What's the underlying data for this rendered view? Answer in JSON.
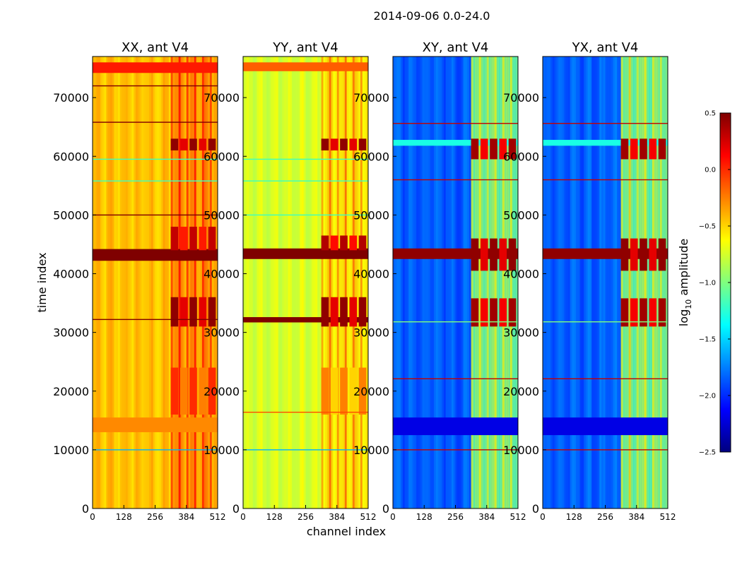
{
  "figure": {
    "suptitle": "2014-09-06 0.0-24.0",
    "xlabel": "channel index",
    "ylabel": "time index"
  },
  "colorbar": {
    "label_main": "log",
    "label_sub": "10",
    "label_rest": " amplitude",
    "range": [
      -2.5,
      0.5
    ],
    "ticks": [
      "0.5",
      "0.0",
      "−0.5",
      "−1.0",
      "−1.5",
      "−2.0",
      "−2.5"
    ],
    "tick_values": [
      0.5,
      0.0,
      -0.5,
      -1.0,
      -1.5,
      -2.0,
      -2.5
    ],
    "colormap": "jet",
    "colors": [
      "#00007f",
      "#0000ff",
      "#007fff",
      "#00ffff",
      "#7fff7f",
      "#ffff00",
      "#ff7f00",
      "#ff0000",
      "#7f0000"
    ]
  },
  "chart_data": [
    {
      "type": "heatmap",
      "title": "XX, ant V4",
      "xlabel": "channel index",
      "ylabel": "time index",
      "xlim": [
        0,
        512
      ],
      "ylim": [
        0,
        77000
      ],
      "x_ticks": [
        "0",
        "128",
        "256",
        "384",
        "512"
      ],
      "x_tick_values": [
        0,
        128,
        256,
        384,
        512
      ],
      "y_ticks": [
        "0",
        "10000",
        "20000",
        "30000",
        "40000",
        "50000",
        "60000",
        "70000"
      ],
      "y_tick_values": [
        0,
        10000,
        20000,
        30000,
        40000,
        50000,
        60000,
        70000
      ],
      "base_level": -0.45,
      "rfi_channels": [
        320,
        512
      ],
      "rfi_level": -0.3,
      "band_levels": [
        {
          "t0": 42200,
          "t1": 44200,
          "level": 0.5
        },
        {
          "t0": 74200,
          "t1": 76000,
          "level": 0.05
        },
        {
          "t0": 13000,
          "t1": 15500,
          "level": -0.28
        }
      ],
      "rfi_bursts": [
        {
          "t0": 31000,
          "t1": 36000,
          "level": 0.45
        },
        {
          "t0": 44000,
          "t1": 48000,
          "level": 0.3
        },
        {
          "t0": 61000,
          "t1": 63000,
          "level": 0.45
        },
        {
          "t0": 16000,
          "t1": 24000,
          "level": 0.0
        }
      ],
      "lines": [
        {
          "t": 72000,
          "level": 0.5
        },
        {
          "t": 65800,
          "level": 0.5
        },
        {
          "t": 50000,
          "level": 0.5
        },
        {
          "t": 32200,
          "level": 0.5
        },
        {
          "t": 10000,
          "level": -1.6
        },
        {
          "t": 59500,
          "level": -1.2
        },
        {
          "t": 55800,
          "level": -1.2
        }
      ]
    },
    {
      "type": "heatmap",
      "title": "YY, ant V4",
      "xlabel": "channel index",
      "ylabel": "time index",
      "xlim": [
        0,
        512
      ],
      "ylim": [
        0,
        77000
      ],
      "x_ticks": [
        "0",
        "128",
        "256",
        "384",
        "512"
      ],
      "x_tick_values": [
        0,
        128,
        256,
        384,
        512
      ],
      "y_ticks": [
        "0",
        "10000",
        "20000",
        "30000",
        "40000",
        "50000",
        "60000",
        "70000"
      ],
      "y_tick_values": [
        0,
        10000,
        20000,
        30000,
        40000,
        50000,
        60000,
        70000
      ],
      "base_level": -0.75,
      "rfi_channels": [
        320,
        512
      ],
      "rfi_level": -0.55,
      "band_levels": [
        {
          "t0": 42500,
          "t1": 44300,
          "level": 0.5
        },
        {
          "t0": 31700,
          "t1": 32600,
          "level": 0.5
        },
        {
          "t0": 74500,
          "t1": 76000,
          "level": -0.15
        }
      ],
      "rfi_bursts": [
        {
          "t0": 31000,
          "t1": 36000,
          "level": 0.45
        },
        {
          "t0": 44000,
          "t1": 46500,
          "level": 0.35
        },
        {
          "t0": 61000,
          "t1": 63000,
          "level": 0.45
        },
        {
          "t0": 16000,
          "t1": 24000,
          "level": -0.25
        }
      ],
      "lines": [
        {
          "t": 10000,
          "level": -1.6
        },
        {
          "t": 16400,
          "level": -0.1
        },
        {
          "t": 59500,
          "level": -1.2
        },
        {
          "t": 55800,
          "level": -1.2
        },
        {
          "t": 50000,
          "level": -1.2
        }
      ]
    },
    {
      "type": "heatmap",
      "title": "XY, ant V4",
      "xlabel": "channel index",
      "ylabel": "time index",
      "xlim": [
        0,
        512
      ],
      "ylim": [
        0,
        77000
      ],
      "x_ticks": [
        "0",
        "128",
        "256",
        "384",
        "512"
      ],
      "x_tick_values": [
        0,
        128,
        256,
        384,
        512
      ],
      "y_ticks": [
        "0",
        "10000",
        "20000",
        "30000",
        "40000",
        "50000",
        "60000",
        "70000"
      ],
      "y_tick_values": [
        0,
        10000,
        20000,
        30000,
        40000,
        50000,
        60000,
        70000
      ],
      "base_level": -1.85,
      "rfi_channels": [
        320,
        512
      ],
      "rfi_level": -1.0,
      "band_levels": [
        {
          "t0": 42500,
          "t1": 44300,
          "level": 0.45
        },
        {
          "t0": 61800,
          "t1": 62800,
          "level": -1.3
        },
        {
          "t0": 12500,
          "t1": 15500,
          "level": -2.2
        }
      ],
      "rfi_bursts": [
        {
          "t0": 31000,
          "t1": 35800,
          "level": 0.4
        },
        {
          "t0": 40500,
          "t1": 46000,
          "level": 0.45
        },
        {
          "t0": 59500,
          "t1": 63000,
          "level": 0.4
        }
      ],
      "lines": [
        {
          "t": 65600,
          "level": 0.3
        },
        {
          "t": 56000,
          "level": 0.3
        },
        {
          "t": 31800,
          "level": -1.0
        },
        {
          "t": 10000,
          "level": 0.3
        },
        {
          "t": 22100,
          "level": 0.3
        }
      ]
    },
    {
      "type": "heatmap",
      "title": "YX, ant V4",
      "xlabel": "channel index",
      "ylabel": "time index",
      "xlim": [
        0,
        512
      ],
      "ylim": [
        0,
        77000
      ],
      "x_ticks": [
        "0",
        "128",
        "256",
        "384",
        "512"
      ],
      "x_tick_values": [
        0,
        128,
        256,
        384,
        512
      ],
      "y_ticks": [
        "0",
        "10000",
        "20000",
        "30000",
        "40000",
        "50000",
        "60000",
        "70000"
      ],
      "y_tick_values": [
        0,
        10000,
        20000,
        30000,
        40000,
        50000,
        60000,
        70000
      ],
      "base_level": -1.85,
      "rfi_channels": [
        320,
        512
      ],
      "rfi_level": -1.0,
      "band_levels": [
        {
          "t0": 42500,
          "t1": 44300,
          "level": 0.45
        },
        {
          "t0": 61800,
          "t1": 62800,
          "level": -1.3
        },
        {
          "t0": 12500,
          "t1": 15500,
          "level": -2.2
        }
      ],
      "rfi_bursts": [
        {
          "t0": 31000,
          "t1": 35800,
          "level": 0.4
        },
        {
          "t0": 40500,
          "t1": 46000,
          "level": 0.45
        },
        {
          "t0": 59500,
          "t1": 63000,
          "level": 0.4
        }
      ],
      "lines": [
        {
          "t": 65600,
          "level": 0.3
        },
        {
          "t": 56000,
          "level": 0.3
        },
        {
          "t": 31800,
          "level": -1.0
        },
        {
          "t": 10000,
          "level": 0.3
        },
        {
          "t": 22100,
          "level": 0.3
        }
      ]
    }
  ]
}
